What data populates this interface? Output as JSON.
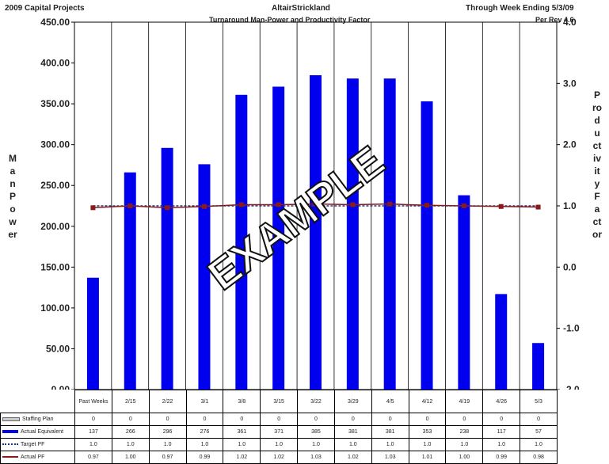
{
  "header": {
    "left": "2009 Capital Projects",
    "center": "AltairStrickland",
    "right": "Through Week Ending 5/3/09",
    "subtitle": "Turnaround Man-Power and Productivity Factor",
    "subright": "Per Rev 4.6"
  },
  "watermark": "EXAMPLE",
  "colors": {
    "bar": "#0000ee",
    "target_line": "#1a3a8a",
    "actual_line": "#8b1a1a",
    "staffing": "#999999"
  },
  "chart_data": {
    "type": "bar",
    "categories": [
      "Past Weeks",
      "2/15",
      "2/22",
      "3/1",
      "3/8",
      "3/15",
      "3/22",
      "3/29",
      "4/5",
      "4/12",
      "4/19",
      "4/26",
      "5/3"
    ],
    "ylabel": "Man Power",
    "y2label": "Productivity Factor",
    "ylim": [
      0,
      450
    ],
    "y2lim": [
      -2.0,
      4.0
    ],
    "yticks": [
      "0.00",
      "50.00",
      "100.00",
      "150.00",
      "200.00",
      "250.00",
      "300.00",
      "350.00",
      "400.00",
      "450.00"
    ],
    "y2ticks": [
      "-2.0",
      "-1.0",
      "0.0",
      "1.0",
      "2.0",
      "3.0",
      "4.0"
    ],
    "series": [
      {
        "name": "Staffing Plan",
        "axis": "left",
        "kind": "line",
        "values": [
          0,
          0,
          0,
          0,
          0,
          0,
          0,
          0,
          0,
          0,
          0,
          0,
          0
        ],
        "labels": [
          "0",
          "0",
          "0",
          "0",
          "0",
          "0",
          "0",
          "0",
          "0",
          "0",
          "0",
          "0",
          "0"
        ]
      },
      {
        "name": "Actual Equivalent",
        "axis": "left",
        "kind": "bar",
        "values": [
          137,
          266,
          296,
          276,
          361,
          371,
          385,
          381,
          381,
          353,
          238,
          117,
          57
        ],
        "labels": [
          "137",
          "266",
          "296",
          "276",
          "361",
          "371",
          "385",
          "381",
          "381",
          "353",
          "238",
          "117",
          "57"
        ]
      },
      {
        "name": "Target PF",
        "axis": "right",
        "kind": "line",
        "values": [
          1.0,
          1.0,
          1.0,
          1.0,
          1.0,
          1.0,
          1.0,
          1.0,
          1.0,
          1.0,
          1.0,
          1.0,
          1.0
        ],
        "labels": [
          "1.0",
          "1.0",
          "1.0",
          "1.0",
          "1.0",
          "1.0",
          "1.0",
          "1.0",
          "1.0",
          "1.0",
          "1.0",
          "1.0",
          "1.0"
        ]
      },
      {
        "name": "Actual PF",
        "axis": "right",
        "kind": "line",
        "values": [
          0.97,
          1.0,
          0.97,
          0.99,
          1.02,
          1.02,
          1.03,
          1.02,
          1.03,
          1.01,
          1.0,
          0.99,
          0.98
        ],
        "labels": [
          "0.97",
          "1.00",
          "0.97",
          "0.99",
          "1.02",
          "1.02",
          "1.03",
          "1.02",
          "1.03",
          "1.01",
          "1.00",
          "0.99",
          "0.98"
        ]
      }
    ]
  }
}
